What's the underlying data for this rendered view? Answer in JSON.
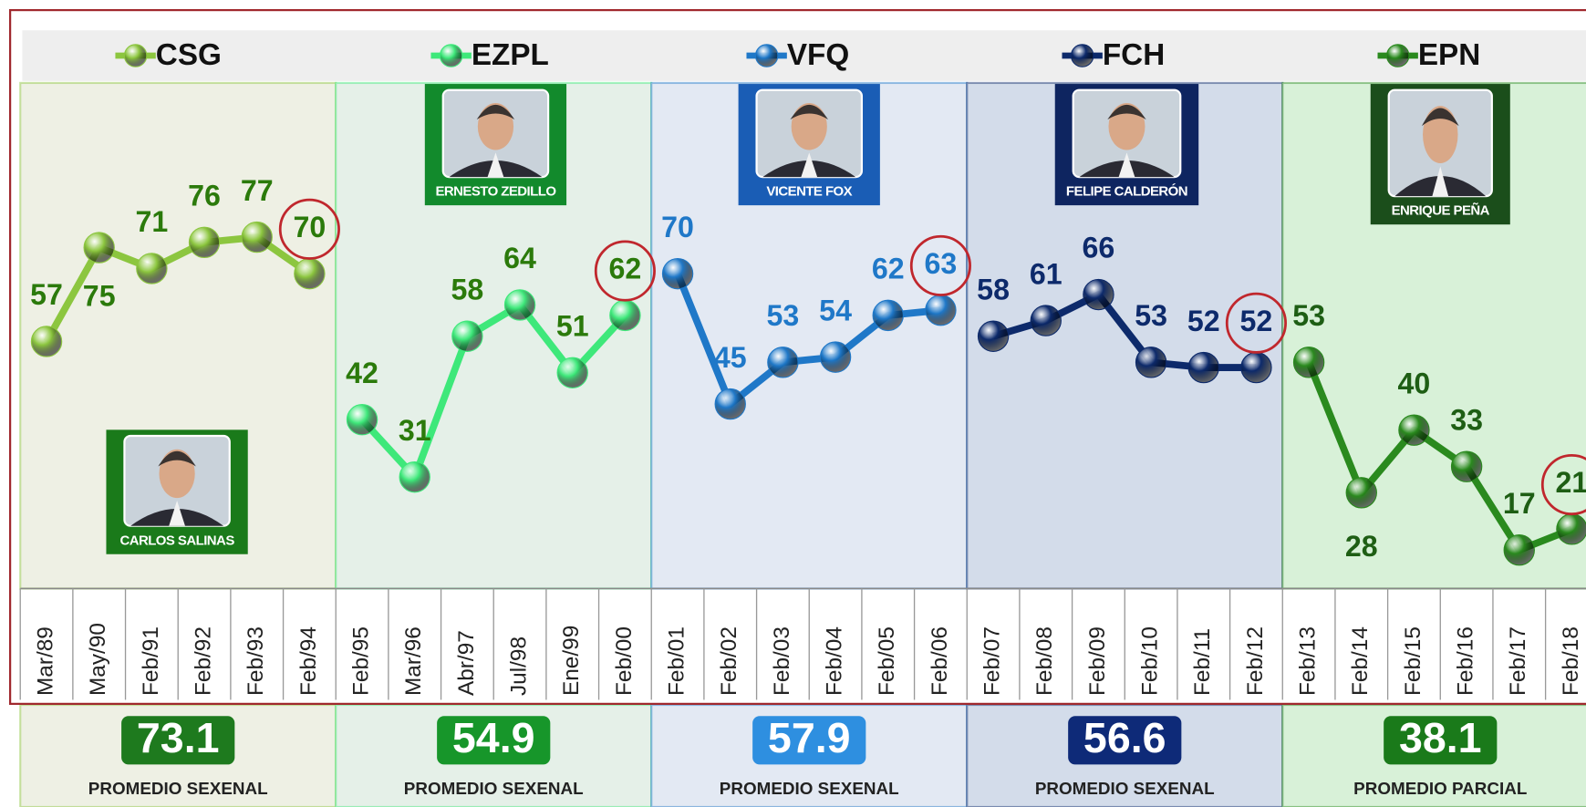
{
  "chart_data": {
    "type": "line",
    "categories": [
      "Mar/89",
      "May/90",
      "Feb/91",
      "Feb/92",
      "Feb/93",
      "Feb/94",
      "Feb/95",
      "Mar/96",
      "Abr/97",
      "Jul/98",
      "Ene/99",
      "Feb/00",
      "Feb/01",
      "Feb/02",
      "Feb/03",
      "Feb/04",
      "Feb/05",
      "Feb/06",
      "Feb/07",
      "Feb/08",
      "Feb/09",
      "Feb/10",
      "Feb/11",
      "Feb/12",
      "Feb/13",
      "Feb/14",
      "Feb/15",
      "Feb/16",
      "Feb/17",
      "Feb/18"
    ],
    "ylim": [
      10,
      106
    ],
    "legend": "top",
    "series": [
      {
        "name": "CSG",
        "color": "#8cc63f",
        "label_color": "#2b7a0b",
        "background": "#eef0e4",
        "badge_color": "#1e7a1e",
        "president": "CARLOS SALINAS",
        "average": 73.1,
        "average_label": "PROMEDIO SEXENAL",
        "values": [
          57,
          75,
          71,
          76,
          77,
          70,
          null,
          null,
          null,
          null,
          null,
          null,
          null,
          null,
          null,
          null,
          null,
          null,
          null,
          null,
          null,
          null,
          null,
          null,
          null,
          null,
          null,
          null,
          null,
          null
        ]
      },
      {
        "name": "EZPL",
        "color": "#3ee87a",
        "label_color": "#2b7a0b",
        "background": "#e5f0e8",
        "badge_color": "#17962a",
        "president": "ERNESTO ZEDILLO",
        "average": 54.9,
        "average_label": "PROMEDIO SEXENAL",
        "values": [
          null,
          null,
          null,
          null,
          null,
          null,
          42,
          31,
          58,
          64,
          51,
          62,
          null,
          null,
          null,
          null,
          null,
          null,
          null,
          null,
          null,
          null,
          null,
          null,
          null,
          null,
          null,
          null,
          null,
          null
        ]
      },
      {
        "name": "VFQ",
        "color": "#1f78c8",
        "label_color": "#1f78c8",
        "background": "#e3e9f3",
        "badge_color": "#2e8fe0",
        "president": "VICENTE FOX",
        "average": 57.9,
        "average_label": "PROMEDIO SEXENAL",
        "values": [
          null,
          null,
          null,
          null,
          null,
          null,
          null,
          null,
          null,
          null,
          null,
          null,
          70,
          45,
          53,
          54,
          62,
          63,
          null,
          null,
          null,
          null,
          null,
          null,
          null,
          null,
          null,
          null,
          null,
          null
        ]
      },
      {
        "name": "FCH",
        "color": "#0d2a6b",
        "label_color": "#0d2a6b",
        "background": "#d3dcea",
        "badge_color": "#0e2a78",
        "president": "FELIPE CALDERÓN",
        "average": 56.6,
        "average_label": "PROMEDIO SEXENAL",
        "values": [
          null,
          null,
          null,
          null,
          null,
          null,
          null,
          null,
          null,
          null,
          null,
          null,
          null,
          null,
          null,
          null,
          null,
          null,
          58,
          61,
          66,
          53,
          52,
          52,
          null,
          null,
          null,
          null,
          null,
          null
        ]
      },
      {
        "name": "EPN",
        "color": "#2a8a1e",
        "label_color": "#1e5e14",
        "background": "#d8f1d8",
        "badge_color": "#1a7a1a",
        "president": "ENRIQUE PEÑA",
        "average": 38.1,
        "average_label": "PROMEDIO PARCIAL",
        "values": [
          null,
          null,
          null,
          null,
          null,
          null,
          null,
          null,
          null,
          null,
          null,
          null,
          null,
          null,
          null,
          null,
          null,
          null,
          null,
          null,
          null,
          null,
          null,
          null,
          53,
          28,
          40,
          33,
          17,
          21
        ]
      }
    ]
  }
}
